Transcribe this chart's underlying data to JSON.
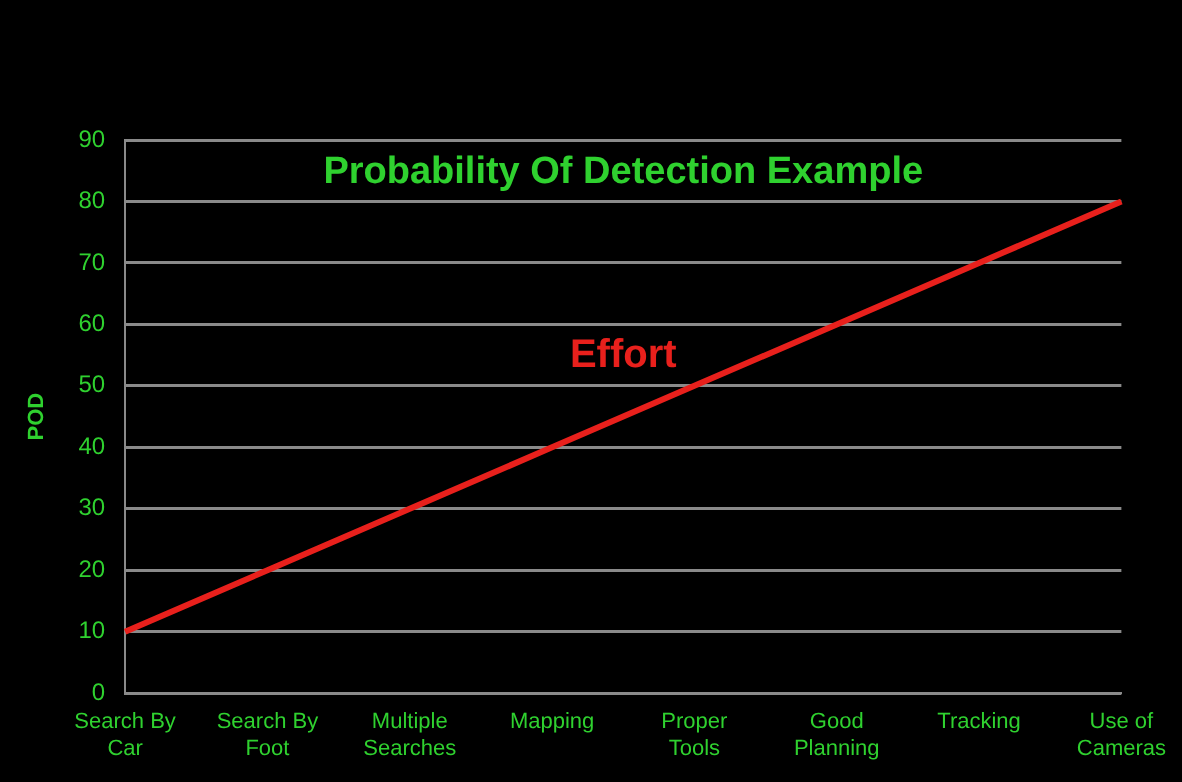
{
  "chart_data": {
    "type": "line",
    "title": "Probability Of Detection Example",
    "ylabel": "POD",
    "categories": [
      "Search By Car",
      "Search By Foot",
      "Multiple Searches",
      "Mapping",
      "Proper Tools",
      "Good Planning",
      "Tracking",
      "Use of Cameras"
    ],
    "series": [
      {
        "name": "Effort",
        "color": "#e8201c",
        "values": [
          10,
          20,
          30,
          40,
          50,
          60,
          70,
          80
        ]
      }
    ],
    "ylim": [
      0,
      90
    ],
    "yticks": [
      0,
      10,
      20,
      30,
      40,
      50,
      60,
      70,
      80,
      90
    ],
    "grid": "y",
    "legend": false,
    "marker": "none",
    "line_style": "solid"
  }
}
